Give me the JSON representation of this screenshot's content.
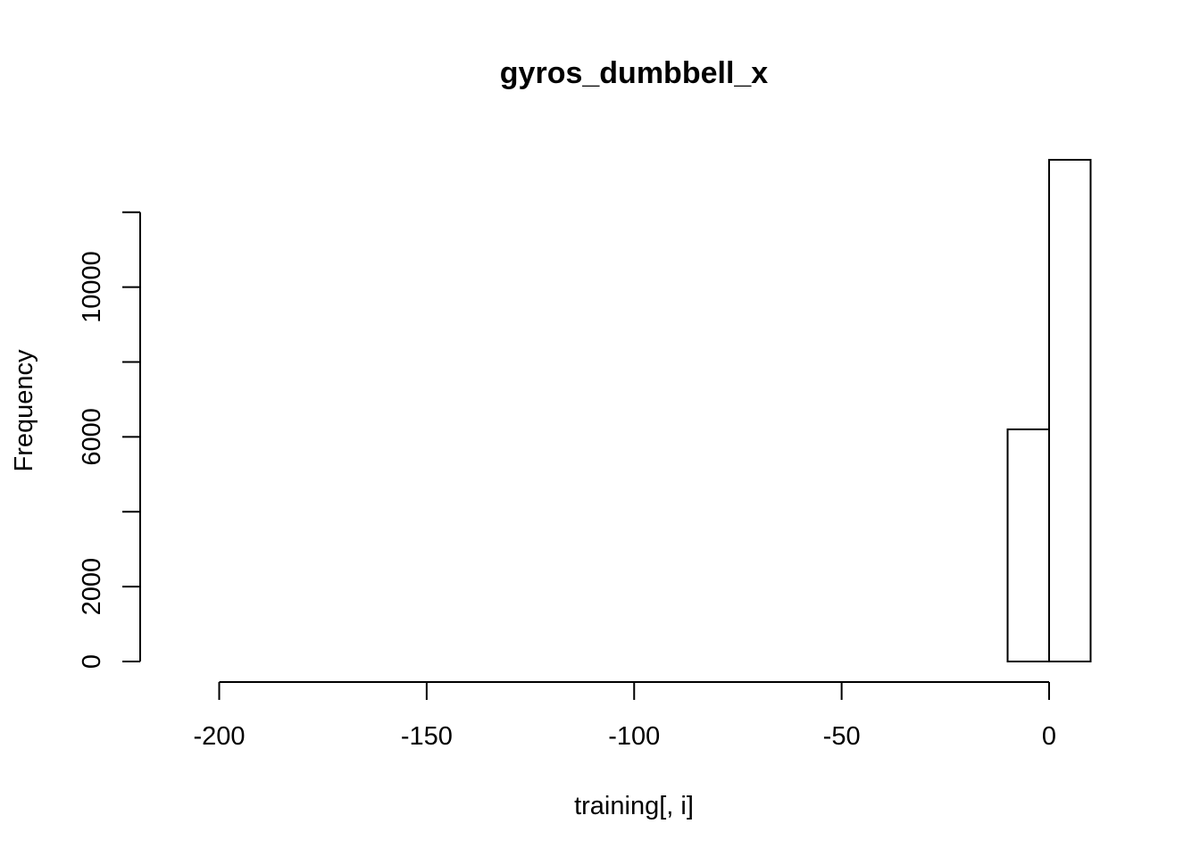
{
  "chart_data": {
    "type": "bar",
    "title": "gyros_dumbbell_x",
    "xlabel": "training[, i]",
    "ylabel": "Frequency",
    "xlim": [
      -205,
      10
    ],
    "ylim": [
      0,
      13400
    ],
    "x_ticks": [
      -200,
      -150,
      -100,
      -50,
      0
    ],
    "y_ticks": [
      0,
      2000,
      4000,
      6000,
      8000,
      10000,
      12000
    ],
    "y_tick_labels": [
      "0",
      "2000",
      "",
      "6000",
      "",
      "10000",
      ""
    ],
    "bin_width": 10,
    "bins": [
      {
        "start": -210,
        "end": -200,
        "count": 0
      },
      {
        "start": -200,
        "end": -190,
        "count": 0
      },
      {
        "start": -190,
        "end": -180,
        "count": 0
      },
      {
        "start": -180,
        "end": -170,
        "count": 0
      },
      {
        "start": -170,
        "end": -160,
        "count": 0
      },
      {
        "start": -160,
        "end": -150,
        "count": 0
      },
      {
        "start": -150,
        "end": -140,
        "count": 0
      },
      {
        "start": -140,
        "end": -130,
        "count": 0
      },
      {
        "start": -130,
        "end": -120,
        "count": 0
      },
      {
        "start": -120,
        "end": -110,
        "count": 0
      },
      {
        "start": -110,
        "end": -100,
        "count": 0
      },
      {
        "start": -100,
        "end": -90,
        "count": 0
      },
      {
        "start": -90,
        "end": -80,
        "count": 0
      },
      {
        "start": -80,
        "end": -70,
        "count": 0
      },
      {
        "start": -70,
        "end": -60,
        "count": 0
      },
      {
        "start": -60,
        "end": -50,
        "count": 0
      },
      {
        "start": -50,
        "end": -40,
        "count": 0
      },
      {
        "start": -40,
        "end": -30,
        "count": 0
      },
      {
        "start": -30,
        "end": -20,
        "count": 0
      },
      {
        "start": -20,
        "end": -10,
        "count": 0
      },
      {
        "start": -10,
        "end": 0,
        "count": 6200
      },
      {
        "start": 0,
        "end": 10,
        "count": 13400
      }
    ],
    "grid": false,
    "legend": "none"
  }
}
